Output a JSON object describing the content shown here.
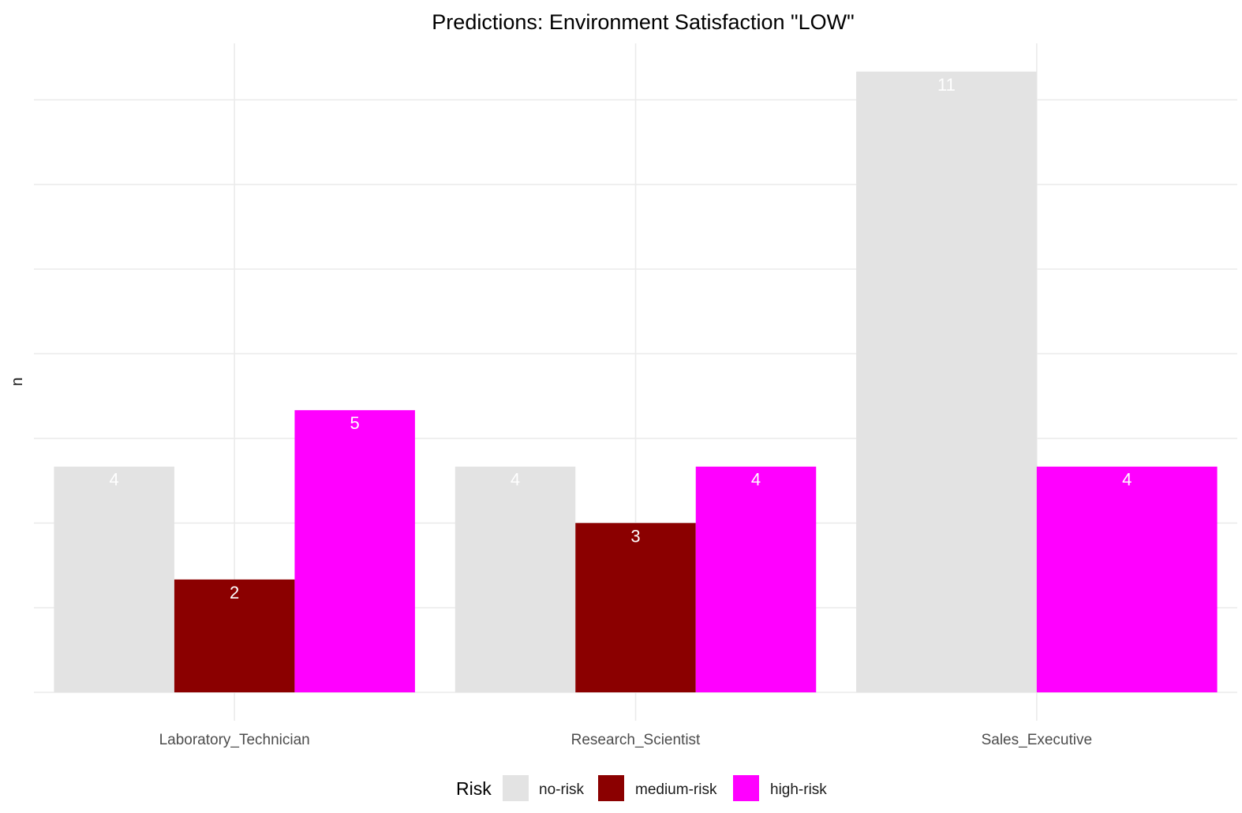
{
  "chart_data": {
    "type": "bar",
    "title": "Predictions: Environment Satisfaction \"LOW\"",
    "xlabel": "",
    "ylabel": "n",
    "categories": [
      "Laboratory_Technician",
      "Research_Scientist",
      "Sales_Executive"
    ],
    "series": [
      {
        "name": "no-risk",
        "color": "#e3e3e3",
        "values": [
          4,
          4,
          11
        ]
      },
      {
        "name": "medium-risk",
        "color": "#8b0000",
        "values": [
          2,
          3,
          null
        ]
      },
      {
        "name": "high-risk",
        "color": "#ff00ff",
        "values": [
          5,
          4,
          4
        ]
      }
    ],
    "ylim": [
      0,
      11.5
    ],
    "y_gridlines": [
      1.5,
      3,
      4.5,
      6,
      7.5,
      9,
      10.5
    ],
    "y_tick_labels_shown": false,
    "legend": {
      "title": "Risk",
      "placement": "bottom",
      "entries": [
        "no-risk",
        "medium-risk",
        "high-risk"
      ]
    },
    "data_labels": true,
    "grid": true
  }
}
